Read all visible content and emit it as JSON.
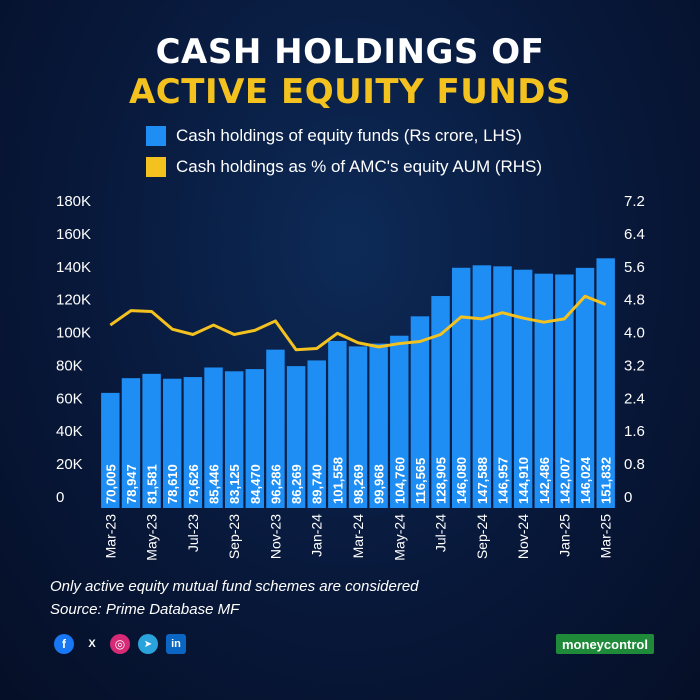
{
  "title_line1": "CASH HOLDINGS OF",
  "title_line2": "ACTIVE EQUITY FUNDS",
  "legend": {
    "bars": "Cash holdings of equity funds (Rs crore, LHS)",
    "line": "Cash holdings as % of AMC's equity AUM (RHS)"
  },
  "colors": {
    "bars": "#1e8ef5",
    "line": "#f4c21f",
    "title_accent": "#f4c21f"
  },
  "chart_data": {
    "type": "bar",
    "categories": [
      "Mar-23",
      "Apr-23",
      "May-23",
      "Jun-23",
      "Jul-23",
      "Aug-23",
      "Sep-23",
      "Oct-23",
      "Nov-23",
      "Dec-23",
      "Jan-24",
      "Feb-24",
      "Mar-24",
      "Apr-24",
      "May-24",
      "Jun-24",
      "Jul-24",
      "Aug-24",
      "Sep-24",
      "Oct-24",
      "Nov-24",
      "Dec-24",
      "Jan-25",
      "Feb-25",
      "Mar-25"
    ],
    "x_tick_labels": [
      "Mar-23",
      "May-23",
      "Jul-23",
      "Sep-23",
      "Nov-23",
      "Jan-24",
      "Mar-24",
      "May-24",
      "Jul-24",
      "Sep-24",
      "Nov-24",
      "Jan-25",
      "Mar-25"
    ],
    "series": [
      {
        "name": "Cash holdings of equity funds (Rs crore, LHS)",
        "type": "bar",
        "axis": "left",
        "values": [
          70005,
          78947,
          81581,
          78610,
          79626,
          85446,
          83125,
          84470,
          96286,
          86269,
          89740,
          101558,
          98269,
          99968,
          104760,
          116565,
          128905,
          146080,
          147588,
          146957,
          144910,
          142486,
          142007,
          146024,
          151832
        ],
        "labels": [
          "70,005",
          "78,947",
          "81,581",
          "78,610",
          "79,626",
          "85,446",
          "83,125",
          "84,470",
          "96,286",
          "86,269",
          "89,740",
          "101,558",
          "98,269",
          "99,968",
          "104,760",
          "116,565",
          "128,905",
          "146,080",
          "147,588",
          "146,957",
          "144,910",
          "142,486",
          "142,007",
          "146,024",
          "151,832"
        ]
      },
      {
        "name": "Cash holdings as % of AMC's equity AUM (RHS)",
        "type": "line",
        "axis": "right",
        "values": [
          4.45,
          4.8,
          4.78,
          4.35,
          4.22,
          4.45,
          4.22,
          4.32,
          4.55,
          3.85,
          3.88,
          4.25,
          4.02,
          3.92,
          4.0,
          4.05,
          4.22,
          4.65,
          4.6,
          4.75,
          4.62,
          4.52,
          4.6,
          5.15,
          4.95
        ]
      }
    ],
    "y_left": {
      "ylim": [
        0,
        180000
      ],
      "ticks": [
        "0",
        "20K",
        "40K",
        "60K",
        "80K",
        "100K",
        "120K",
        "140K",
        "160K",
        "180K"
      ]
    },
    "y_right": {
      "ylim": [
        0,
        7.2
      ],
      "ticks": [
        "0",
        "0.8",
        "1.6",
        "2.4",
        "3.2",
        "4.0",
        "4.8",
        "5.6",
        "6.4",
        "7.2"
      ]
    },
    "grid": false,
    "legend_position": "top"
  },
  "notes": {
    "note1": "Only active equity mutual fund schemes are considered",
    "note2": "Source: Prime Database MF"
  },
  "social": {
    "facebook": "f",
    "x": "X",
    "instagram": "◎",
    "telegram": "➤",
    "linkedin": "in"
  },
  "brand": "moneycontrol"
}
